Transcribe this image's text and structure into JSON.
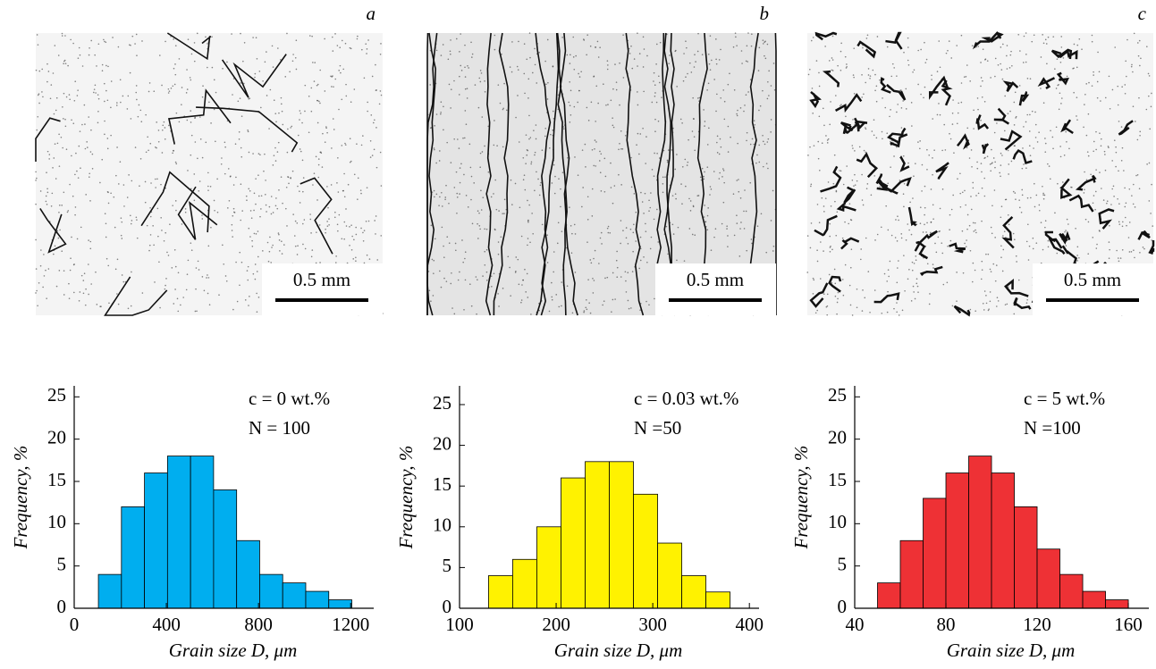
{
  "panels": [
    {
      "label": "a",
      "scale_bar": "0.5 mm"
    },
    {
      "label": "b",
      "scale_bar": "0.5 mm"
    },
    {
      "label": "c",
      "scale_bar": "0.5 mm"
    }
  ],
  "chart_data": [
    {
      "type": "histogram",
      "color": "#00aeef",
      "annotations": [
        "c = 0 wt.%",
        "N = 100"
      ],
      "x_label": "Grain size D, μm",
      "y_label": "Frequency, %",
      "bins": [
        105,
        205,
        305,
        405,
        505,
        605,
        705,
        805,
        905,
        1005,
        1105,
        1205
      ],
      "counts": [
        4,
        12,
        16,
        18,
        18,
        14,
        8,
        4,
        3,
        2,
        1
      ],
      "xlim": [
        0,
        1300
      ],
      "xticks": [
        0,
        400,
        800,
        1200
      ],
      "ylim": [
        0,
        26.3
      ],
      "yticks": [
        0,
        5,
        10,
        15,
        20,
        25
      ]
    },
    {
      "type": "histogram",
      "color": "#fff200",
      "annotations": [
        "c = 0.03 wt.%",
        "N =50"
      ],
      "x_label": "Grain size D, μm",
      "y_label": "Frequency, %",
      "bins": [
        130,
        155,
        180,
        205,
        230,
        255,
        280,
        305,
        330,
        355,
        380
      ],
      "counts": [
        4,
        6,
        10,
        16,
        18,
        18,
        14,
        8,
        4,
        2
      ],
      "xlim": [
        100,
        410
      ],
      "xticks": [
        100,
        200,
        300,
        400
      ],
      "ylim": [
        0,
        27.3
      ],
      "yticks": [
        0,
        5,
        10,
        15,
        20,
        25
      ]
    },
    {
      "type": "histogram",
      "color": "#ee3135",
      "annotations": [
        "c = 5 wt.%",
        "N =100"
      ],
      "x_label": "Grain size D, μm",
      "y_label": "Frequency, %",
      "bins": [
        50,
        60,
        70,
        80,
        90,
        100,
        110,
        120,
        130,
        140,
        150,
        160
      ],
      "counts": [
        3,
        8,
        13,
        16,
        18,
        16,
        12,
        7,
        4,
        2,
        1
      ],
      "xlim": [
        40,
        169
      ],
      "xticks": [
        40,
        80,
        120,
        160
      ],
      "ylim": [
        0,
        26.3
      ],
      "yticks": [
        0,
        5,
        10,
        15,
        20,
        25
      ]
    }
  ]
}
